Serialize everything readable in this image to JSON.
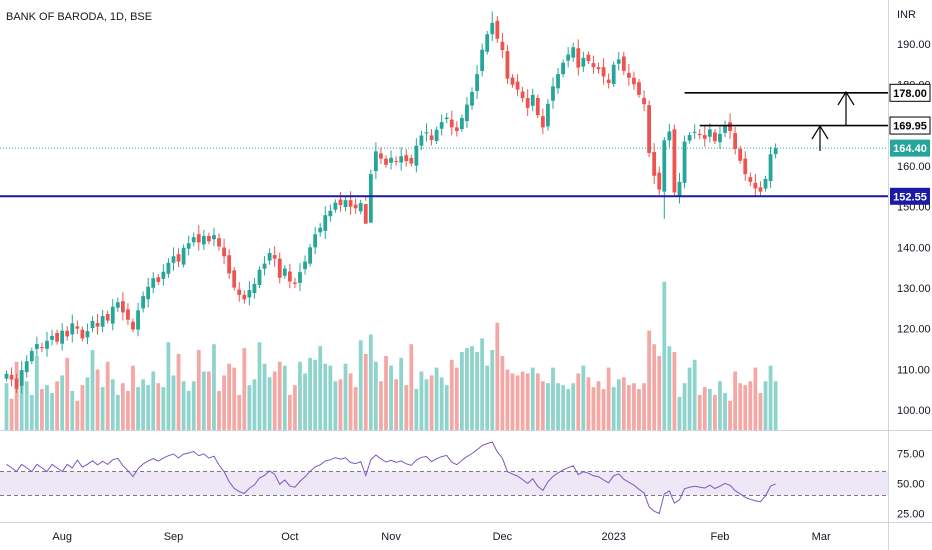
{
  "chart_data": {
    "type": "candlestick",
    "title": "BANK OF BARODA, 1D, BSE",
    "currency": "INR",
    "price_axis": {
      "ticks": [
        190.0,
        180.0,
        170.0,
        160.0,
        150.0,
        140.0,
        130.0,
        120.0,
        110.0,
        100.0
      ],
      "tick_labels": [
        "190.00",
        "180.00",
        "170.00",
        "160.00",
        "150.00",
        "140.00",
        "130.00",
        "120.00",
        "110.00",
        "100.00"
      ],
      "range": [
        97,
        198.5
      ]
    },
    "rsi_axis": {
      "ticks": [
        75,
        50,
        25
      ],
      "tick_labels": [
        "75.00",
        "50.00",
        "25.00"
      ],
      "band": [
        40,
        60
      ],
      "range": [
        18,
        88
      ]
    },
    "time_axis": {
      "labels": [
        "Aug",
        "Sep",
        "Oct",
        "Nov",
        "Dec",
        "2023",
        "Feb",
        "Mar"
      ],
      "label_index": [
        11,
        33,
        56,
        76,
        98,
        120,
        141,
        161
      ]
    },
    "levels": [
      {
        "name": "support",
        "value": 152.55,
        "label": "152.55",
        "color": "#1a1aa6"
      },
      {
        "name": "resistance-1",
        "value": 169.95,
        "label": "169.95",
        "color": "#000000"
      },
      {
        "name": "resistance-2",
        "value": 178.0,
        "label": "178.00",
        "color": "#000000"
      }
    ],
    "last_price": {
      "value": 164.4,
      "label": "164.40",
      "color": "#26a69a"
    },
    "colors": {
      "up": "#26a69a",
      "down": "#ef5350",
      "up_vol": "#8fd4cc",
      "down_vol": "#f4a8a6",
      "rsi_line": "#7e57c2",
      "rsi_band": "#ede7f6",
      "grid_line": "#e0e3eb"
    },
    "closes": [
      108.9,
      107.5,
      105.2,
      109.8,
      112.0,
      114.5,
      116.2,
      115.3,
      117.0,
      118.2,
      116.8,
      119.5,
      118.1,
      121.3,
      120.0,
      117.6,
      119.4,
      121.9,
      120.5,
      123.1,
      122.0,
      125.4,
      126.5,
      124.0,
      122.2,
      119.8,
      124.5,
      128.0,
      130.3,
      132.4,
      131.5,
      134.0,
      136.2,
      137.8,
      136.5,
      139.9,
      141.0,
      142.5,
      141.2,
      142.8,
      141.5,
      143.0,
      140.2,
      137.8,
      133.6,
      130.1,
      128.3,
      127.2,
      129.5,
      131.0,
      134.5,
      136.0,
      138.6,
      137.2,
      132.5,
      134.8,
      131.6,
      131.0,
      133.9,
      136.5,
      140.0,
      143.2,
      144.8,
      147.9,
      149.0,
      151.0,
      150.4,
      151.6,
      150.0,
      149.6,
      150.9,
      145.8,
      158.0,
      163.6,
      161.8,
      160.3,
      162.0,
      161.1,
      162.4,
      161.2,
      160.6,
      165.0,
      167.5,
      168.3,
      166.4,
      168.9,
      170.8,
      171.9,
      169.5,
      168.6,
      171.8,
      175.1,
      178.2,
      182.6,
      188.6,
      192.4,
      195.2,
      191.3,
      188.5,
      181.5,
      180.0,
      178.8,
      176.7,
      174.3,
      177.5,
      172.5,
      169.5,
      175.3,
      179.6,
      182.6,
      185.4,
      187.4,
      189.2,
      184.2,
      186.6,
      185.8,
      184.3,
      183.8,
      182.0,
      180.4,
      184.9,
      186.2,
      183.4,
      181.7,
      180.1,
      177.5,
      175.2,
      163.2,
      157.6,
      154.2,
      166.3,
      168.5,
      153.5,
      156.1,
      166.0,
      167.6,
      168.4,
      167.6,
      166.7,
      169.0,
      166.1,
      167.9,
      170.0,
      168.6,
      164.2,
      161.3,
      158.0,
      156.1,
      154.5,
      153.7,
      156.8,
      162.9,
      164.4
    ],
    "volume": [
      2.4,
      1.6,
      3.5,
      3.0,
      2.5,
      1.8,
      3.8,
      2.1,
      2.3,
      1.9,
      2.5,
      2.8,
      3.7,
      2.0,
      1.5,
      2.3,
      2.7,
      4.1,
      3.1,
      2.2,
      3.5,
      2.6,
      1.8,
      2.4,
      2.0,
      3.3,
      2.2,
      2.6,
      2.3,
      3.0,
      2.4,
      2.2,
      4.5,
      2.8,
      3.9,
      2.5,
      2.0,
      2.5,
      4.1,
      3.0,
      3.0,
      4.4,
      2.0,
      2.8,
      3.4,
      3.2,
      1.8,
      4.2,
      2.3,
      2.6,
      4.5,
      3.4,
      2.7,
      3.0,
      3.5,
      3.3,
      1.8,
      2.3,
      3.5,
      2.9,
      3.7,
      3.6,
      4.3,
      3.4,
      3.3,
      2.5,
      2.6,
      3.4,
      2.9,
      2.2,
      4.6,
      3.9,
      4.9,
      3.5,
      2.5,
      3.8,
      3.3,
      2.6,
      3.7,
      2.3,
      4.4,
      2.1,
      3.0,
      2.6,
      2.8,
      3.2,
      2.7,
      2.3,
      3.6,
      3.2,
      4.0,
      4.2,
      4.3,
      4.0,
      4.7,
      3.3,
      4.1,
      5.5,
      3.8,
      3.1,
      2.9,
      2.8,
      3.0,
      2.9,
      3.2,
      2.9,
      2.5,
      2.4,
      3.2,
      2.4,
      2.3,
      2.1,
      2.4,
      2.9,
      3.3,
      2.7,
      2.2,
      2.5,
      2.1,
      3.2,
      2.2,
      2.6,
      2.7,
      2.3,
      2.4,
      2.1,
      2.4,
      5.1,
      4.4,
      3.8,
      7.6,
      4.3,
      4.0,
      1.7,
      2.4,
      3.2,
      3.6,
      1.8,
      2.2,
      2.1,
      1.8,
      2.5,
      1.9,
      1.5,
      3.0,
      2.4,
      2.3,
      2.5,
      3.2,
      1.9,
      2.5,
      3.3,
      2.5
    ]
  }
}
